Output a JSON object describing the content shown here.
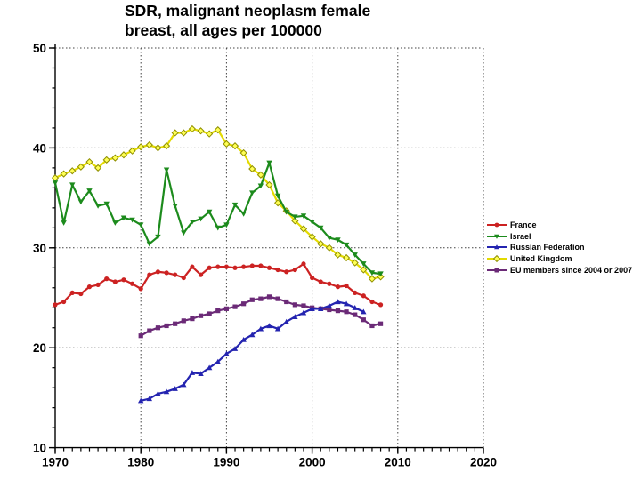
{
  "title": {
    "line1": "SDR, malignant neoplasm female",
    "line2": "breast, all ages per 100000"
  },
  "chart_data": {
    "type": "line",
    "title": "SDR, malignant neoplasm female breast, all ages per 100000",
    "xlabel": "",
    "ylabel": "",
    "xlim": [
      1970,
      2020
    ],
    "ylim": [
      10,
      50
    ],
    "x_ticks": [
      "1970",
      "1980",
      "1990",
      "2000",
      "2010",
      "2020"
    ],
    "x_tick_values": [
      1970,
      1980,
      1990,
      2000,
      2010,
      2020
    ],
    "y_ticks": [
      "10",
      "20",
      "30",
      "40",
      "50"
    ],
    "y_tick_values": [
      10,
      20,
      30,
      40,
      50
    ],
    "x_minor_step": 1,
    "y_minor_step": 2,
    "grid": "dotted",
    "legend_position": "right",
    "series": [
      {
        "name": "France",
        "color": "#cc2222",
        "marker": "circle",
        "start_year": 1970,
        "values": [
          24.3,
          24.6,
          25.5,
          25.4,
          26.1,
          26.3,
          26.9,
          26.6,
          26.8,
          26.4,
          25.9,
          27.3,
          27.6,
          27.5,
          27.3,
          27.0,
          28.1,
          27.3,
          28.0,
          28.1,
          28.1,
          28.0,
          28.1,
          28.2,
          28.2,
          28.0,
          27.8,
          27.6,
          27.8,
          28.4,
          27.0,
          26.6,
          26.4,
          26.1,
          26.2,
          25.5,
          25.2,
          24.6,
          24.3
        ]
      },
      {
        "name": "Israel",
        "color": "#1c8b1c",
        "marker": "triangle-down",
        "start_year": 1970,
        "values": [
          36.5,
          32.5,
          36.3,
          34.6,
          35.7,
          34.2,
          34.4,
          32.5,
          33.0,
          32.8,
          32.3,
          30.4,
          31.1,
          37.8,
          34.2,
          31.5,
          32.6,
          32.9,
          33.6,
          32.0,
          32.3,
          34.3,
          33.4,
          35.5,
          36.2,
          38.5,
          35.2,
          33.6,
          33.1,
          33.2,
          32.6,
          32.0,
          31.0,
          30.8,
          30.3,
          29.3,
          28.4,
          27.5,
          27.4
        ]
      },
      {
        "name": "Russian Federation",
        "color": "#2424b0",
        "marker": "triangle-up",
        "start_year": 1980,
        "values": [
          14.7,
          14.9,
          15.4,
          15.6,
          15.9,
          16.3,
          17.5,
          17.4,
          18.0,
          18.6,
          19.4,
          19.9,
          20.8,
          21.3,
          21.9,
          22.2,
          21.9,
          22.6,
          23.1,
          23.5,
          23.9,
          23.9,
          24.2,
          24.6,
          24.4,
          24.0,
          23.6
        ]
      },
      {
        "name": "United Kingdom",
        "color": "#e3da00",
        "marker": "diamond-open",
        "marker_fill": "#ffff55",
        "marker_stroke": "#8f8f00",
        "start_year": 1970,
        "values": [
          37.0,
          37.4,
          37.7,
          38.1,
          38.6,
          38.0,
          38.8,
          39.0,
          39.3,
          39.7,
          40.1,
          40.3,
          40.0,
          40.2,
          41.5,
          41.5,
          41.9,
          41.7,
          41.4,
          41.8,
          40.4,
          40.2,
          39.5,
          37.9,
          37.3,
          36.3,
          34.5,
          33.7,
          32.7,
          31.9,
          31.1,
          30.4,
          30.0,
          29.3,
          29.0,
          28.5,
          27.8,
          26.9,
          27.1
        ]
      },
      {
        "name": "EU members since 2004 or 2007",
        "color": "#6b2a77",
        "marker": "square",
        "start_year": 1980,
        "values": [
          21.2,
          21.7,
          22.0,
          22.2,
          22.4,
          22.7,
          22.9,
          23.2,
          23.4,
          23.7,
          23.9,
          24.1,
          24.4,
          24.8,
          24.9,
          25.1,
          24.9,
          24.6,
          24.3,
          24.2,
          24.0,
          23.9,
          23.8,
          23.7,
          23.6,
          23.3,
          22.8,
          22.2,
          22.4
        ]
      }
    ]
  }
}
